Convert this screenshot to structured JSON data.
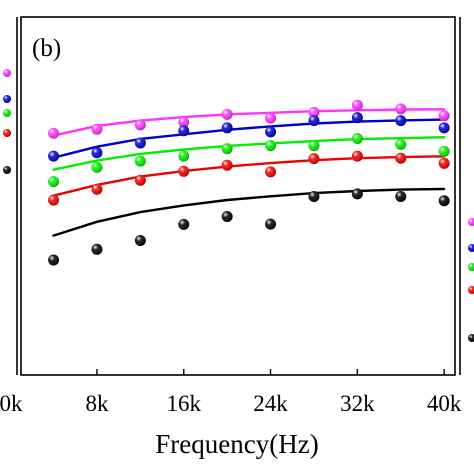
{
  "chart_data": {
    "type": "scatter",
    "panel_label": "(b)",
    "xlabel": "Frequency(Hz)",
    "ylabel": "",
    "xlim": [
      1000,
      41000
    ],
    "ylim": [
      0,
      1
    ],
    "x_ticks": [
      8000,
      16000,
      24000,
      32000,
      40000
    ],
    "x_tick_labels": [
      "8k",
      "16k",
      "24k",
      "32k",
      "40k"
    ],
    "left_panel_tick_label": "0k",
    "legend": "none",
    "series": [
      {
        "color": "#ff33ff",
        "points": {
          "x": [
            4000,
            8000,
            12000,
            16000,
            20000,
            24000,
            28000,
            32000,
            36000,
            40000
          ],
          "y": [
            0.855,
            0.876,
            0.898,
            0.912,
            0.952,
            0.933,
            0.962,
            0.999,
            0.98,
            0.945
          ]
        },
        "fit": {
          "x": [
            4000,
            8000,
            12000,
            16000,
            20000,
            24000,
            28000,
            32000,
            36000,
            40000
          ],
          "y": [
            0.843,
            0.893,
            0.92,
            0.938,
            0.952,
            0.96,
            0.968,
            0.973,
            0.977,
            0.978
          ]
        }
      },
      {
        "color": "#0000cc",
        "points": {
          "x": [
            4000,
            8000,
            12000,
            16000,
            20000,
            24000,
            28000,
            32000,
            36000,
            40000
          ],
          "y": [
            0.738,
            0.755,
            0.805,
            0.868,
            0.883,
            0.862,
            0.92,
            0.935,
            0.92,
            0.883
          ]
        },
        "fit": {
          "x": [
            4000,
            8000,
            12000,
            16000,
            20000,
            24000,
            28000,
            32000,
            36000,
            40000
          ],
          "y": [
            0.73,
            0.786,
            0.826,
            0.85,
            0.873,
            0.89,
            0.905,
            0.915,
            0.921,
            0.925
          ]
        }
      },
      {
        "color": "#00ee00",
        "points": {
          "x": [
            4000,
            8000,
            12000,
            16000,
            20000,
            24000,
            28000,
            32000,
            36000,
            40000
          ],
          "y": [
            0.607,
            0.68,
            0.712,
            0.738,
            0.776,
            0.792,
            0.791,
            0.828,
            0.798,
            0.762
          ]
        },
        "fit": {
          "x": [
            4000,
            8000,
            12000,
            16000,
            20000,
            24000,
            28000,
            32000,
            36000,
            40000
          ],
          "y": [
            0.668,
            0.715,
            0.749,
            0.772,
            0.79,
            0.803,
            0.815,
            0.825,
            0.83,
            0.835
          ]
        }
      },
      {
        "color": "#ee0000",
        "points": {
          "x": [
            4000,
            8000,
            12000,
            16000,
            20000,
            24000,
            28000,
            32000,
            36000,
            40000
          ],
          "y": [
            0.512,
            0.568,
            0.614,
            0.66,
            0.691,
            0.657,
            0.725,
            0.738,
            0.727,
            0.701
          ]
        },
        "fit": {
          "x": [
            4000,
            8000,
            12000,
            16000,
            20000,
            24000,
            28000,
            32000,
            36000,
            40000
          ],
          "y": [
            0.535,
            0.59,
            0.633,
            0.661,
            0.684,
            0.702,
            0.717,
            0.727,
            0.733,
            0.737
          ]
        }
      },
      {
        "color": "#000000",
        "points": {
          "x": [
            4000,
            8000,
            12000,
            16000,
            20000,
            24000,
            28000,
            32000,
            36000,
            40000
          ],
          "y": [
            0.205,
            0.26,
            0.305,
            0.388,
            0.428,
            0.389,
            0.531,
            0.544,
            0.531,
            0.509
          ]
        },
        "fit": {
          "x": [
            4000,
            8000,
            12000,
            16000,
            20000,
            24000,
            28000,
            32000,
            36000,
            40000
          ],
          "y": [
            0.33,
            0.401,
            0.451,
            0.485,
            0.513,
            0.532,
            0.548,
            0.559,
            0.566,
            0.569
          ]
        }
      }
    ],
    "left_panel_marker_colors": [
      "#ff33ff",
      "#0000cc",
      "#00ee00",
      "#ee0000",
      "#000000"
    ],
    "right_panel_marker_colors": [
      "#ff33ff",
      "#0000cc",
      "#00ee00",
      "#ee0000",
      "#000000"
    ]
  }
}
